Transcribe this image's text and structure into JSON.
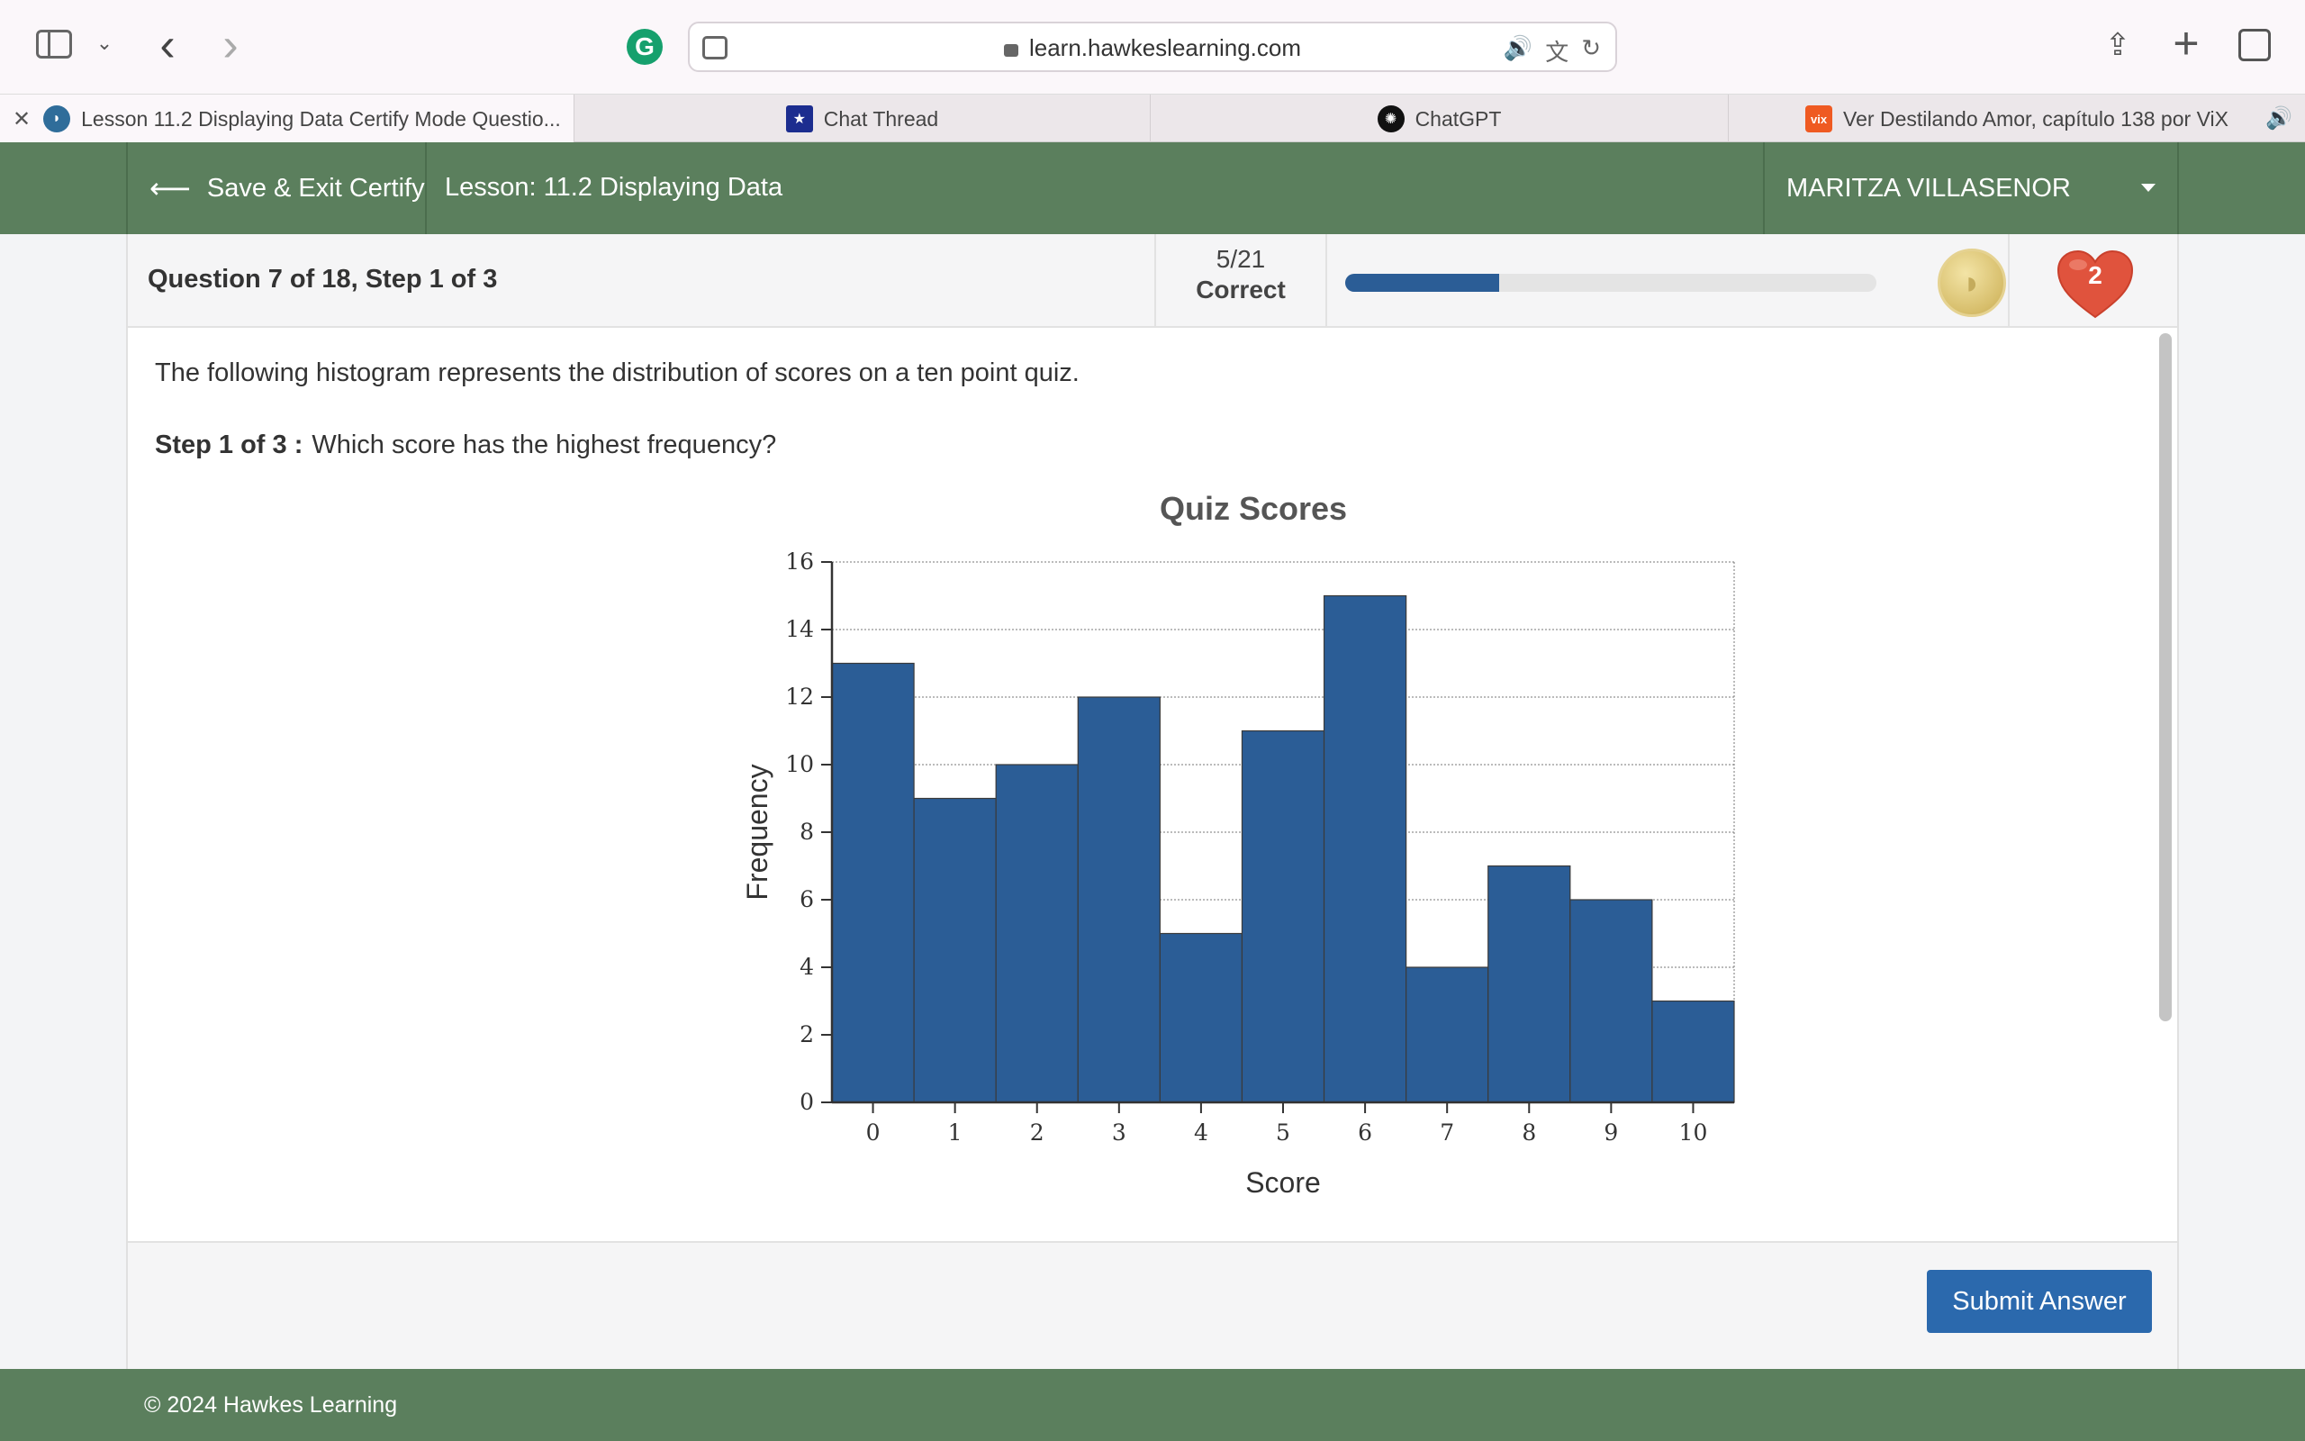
{
  "browser": {
    "url": "learn.hawkeslearning.com",
    "tabs": [
      {
        "title": "Lesson 11.2 Displaying Data Certify Mode Questio...",
        "favicon": "hawkes-icon"
      },
      {
        "title": "Chat Thread",
        "favicon": "star-icon"
      },
      {
        "title": "ChatGPT",
        "favicon": "chatgpt-icon"
      },
      {
        "title": "Ver Destilando Amor, capítulo 138 por ViX",
        "favicon": "vix-icon",
        "favicon_text": "vix"
      }
    ]
  },
  "header": {
    "save_exit_label": "Save & Exit Certify",
    "lesson_title": "Lesson: 11.2 Displaying Data",
    "user_name": "MARITZA VILLASENOR"
  },
  "question_bar": {
    "label": "Question 7 of 18, Step 1 of 3",
    "score_fraction": "5/21",
    "score_label": "Correct",
    "progress": 0.29,
    "hearts": "2"
  },
  "question": {
    "intro": "The following histogram represents the distribution of scores on a ten point quiz.",
    "step_label": "Step 1 of 3 :",
    "step_text": "Which score has the highest frequency?"
  },
  "chart_data": {
    "type": "bar",
    "title": "Quiz Scores",
    "xlabel": "Score",
    "ylabel": "Frequency",
    "categories": [
      "0",
      "1",
      "2",
      "3",
      "4",
      "5",
      "6",
      "7",
      "8",
      "9",
      "10"
    ],
    "values": [
      13,
      9,
      10,
      12,
      5,
      11,
      15,
      4,
      7,
      6,
      3
    ],
    "ylim": [
      0,
      16
    ],
    "yticks": [
      0,
      2,
      4,
      6,
      8,
      10,
      12,
      14,
      16
    ],
    "grid": true,
    "bar_color": "#2b5d96"
  },
  "footer": {
    "submit_label": "Submit Answer",
    "copyright": "© 2024 Hawkes Learning"
  },
  "colors": {
    "header_green": "#5b7f5d",
    "accent_blue": "#2b69ad",
    "heart_red": "#e0533d"
  }
}
